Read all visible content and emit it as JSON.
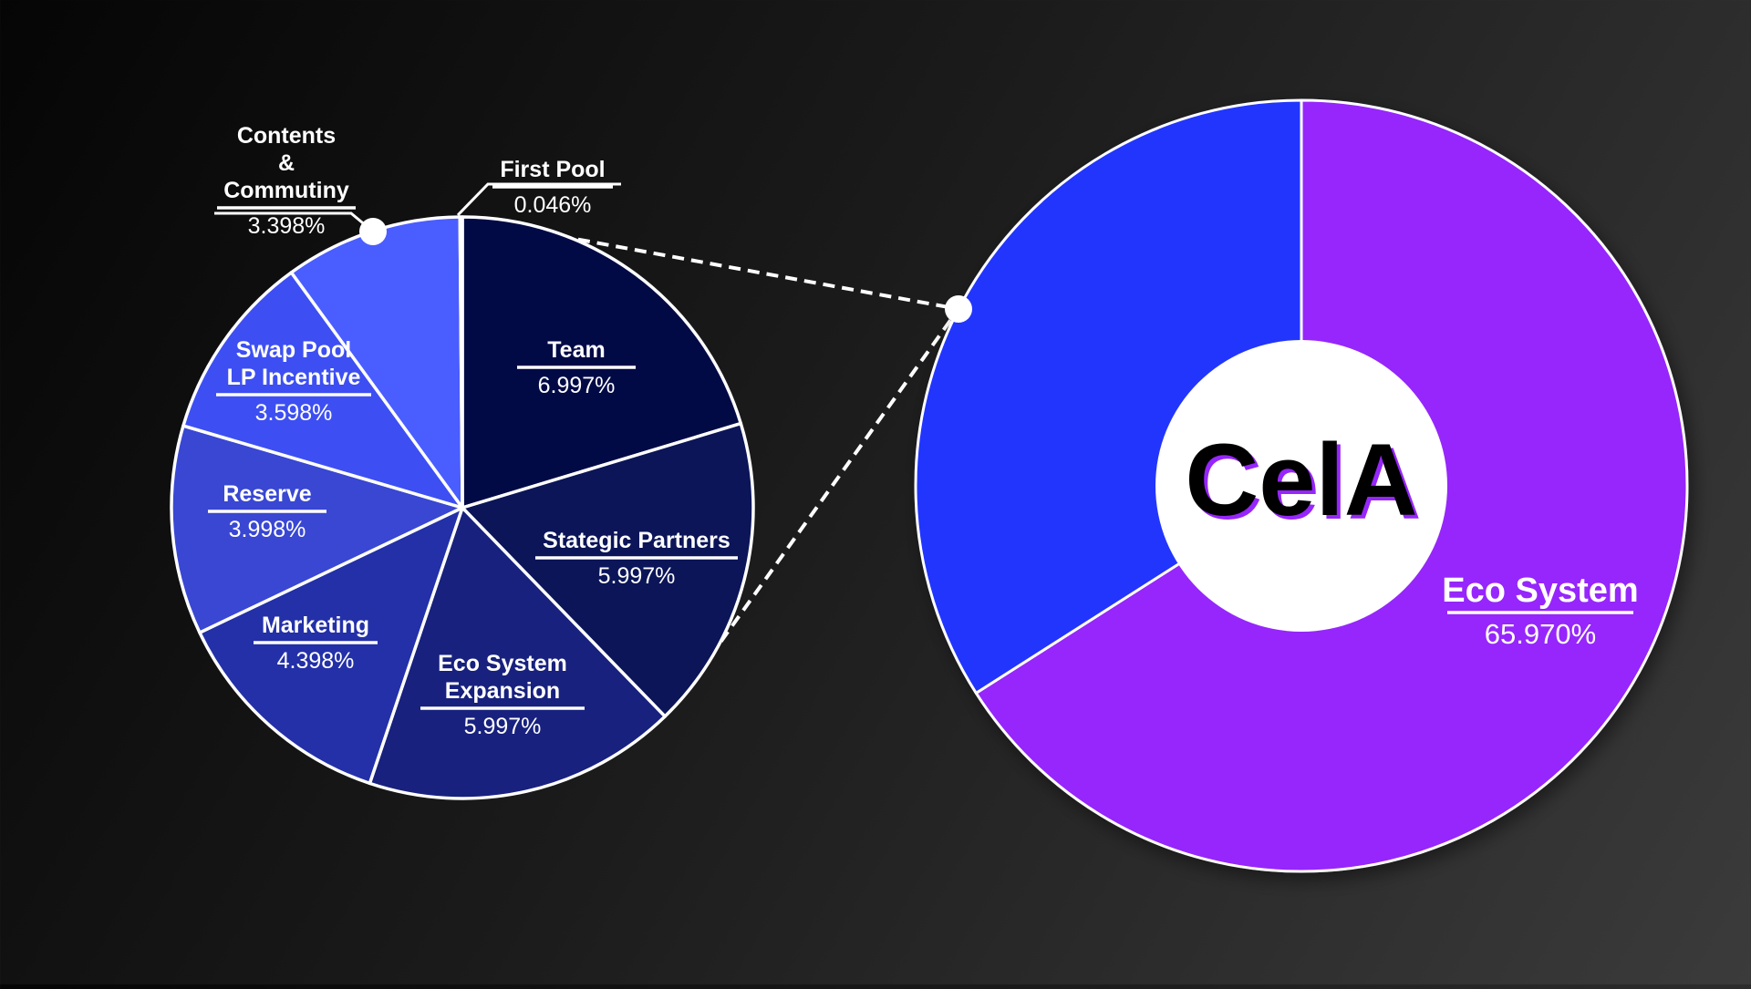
{
  "chart_data": [
    {
      "type": "pie",
      "title": "",
      "slices": [
        {
          "label_lines": [
            "Team"
          ],
          "value": 6.997,
          "value_text": "6.997%",
          "color": "#020a46"
        },
        {
          "label_lines": [
            "Stategic Partners"
          ],
          "value": 5.997,
          "value_text": "5.997%",
          "color": "#0b1558"
        },
        {
          "label_lines": [
            "Eco System",
            "Expansion"
          ],
          "value": 5.997,
          "value_text": "5.997%",
          "color": "#18217d"
        },
        {
          "label_lines": [
            "Marketing"
          ],
          "value": 4.398,
          "value_text": "4.398%",
          "color": "#2330a8"
        },
        {
          "label_lines": [
            "Reserve"
          ],
          "value": 3.998,
          "value_text": "3.998%",
          "color": "#3947d3"
        },
        {
          "label_lines": [
            "Swap Pool",
            "LP Incentive"
          ],
          "value": 3.598,
          "value_text": "3.598%",
          "color": "#3d4ff2"
        },
        {
          "label_lines": [
            "Contents",
            "&",
            "Commutiny"
          ],
          "value": 3.398,
          "value_text": "3.398%",
          "color": "#4a5dff"
        },
        {
          "label_lines": [
            "First Pool"
          ],
          "value": 0.046,
          "value_text": "0.046%",
          "color": "#9fa6ff"
        }
      ]
    },
    {
      "type": "pie",
      "title": "",
      "center_label": "CelA",
      "slices": [
        {
          "label_lines": [
            "Eco System"
          ],
          "value": 65.97,
          "value_text": "65.970%",
          "color": "#9626fb"
        },
        {
          "label_lines": [],
          "value": 34.03,
          "value_text": "",
          "color": "#2035fd"
        }
      ]
    }
  ]
}
